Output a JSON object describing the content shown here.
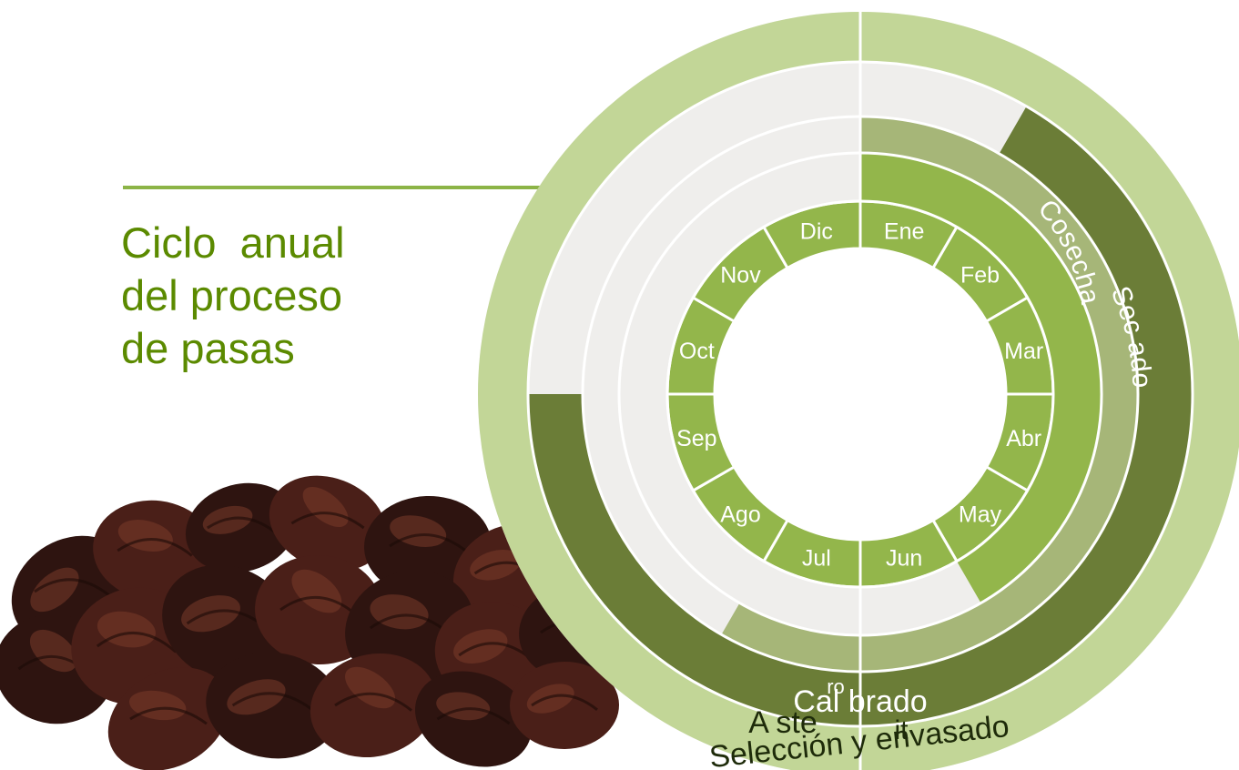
{
  "colors": {
    "title": "#5b8a00",
    "rule": "#8cb447",
    "track": "#efeeec",
    "month_fill": "#93b64b",
    "separator": "#ffffff",
    "cosecha": "#93b64b",
    "secado": "#a6b678",
    "calibrado": "#6b7d37",
    "outer": "#c2d697",
    "raisin_dark": "#2e1410",
    "raisin_mid": "#4a1f18",
    "raisin_light": "#7a3a2a"
  },
  "title": {
    "lines": [
      "Ciclo  anual",
      "del proceso",
      "de pasas"
    ]
  },
  "months": [
    "Ene",
    "Feb",
    "Mar",
    "Abr",
    "May",
    "Jun",
    "Jul",
    "Ago",
    "Sep",
    "Oct",
    "Nov",
    "Dic"
  ],
  "phases": [
    {
      "label": "Cosecha",
      "start_month": 1,
      "end_month": 5,
      "ring": 1,
      "color_key": "cosecha"
    },
    {
      "label": "Sec ado",
      "start_month": 1,
      "end_month": 7,
      "ring": 2,
      "color_key": "secado"
    },
    {
      "label": "Cal brado",
      "start_month": 2,
      "end_month": 9,
      "ring": 3,
      "color_key": "calibrado"
    },
    {
      "label": "Selección y envasado",
      "start_month": 1,
      "end_month": 12,
      "ring": 4,
      "color_key": "outer"
    }
  ],
  "overlay_fragments": [
    "ro",
    "A ste",
    "it"
  ],
  "illustration": {
    "raisins": "raisin-pile"
  }
}
